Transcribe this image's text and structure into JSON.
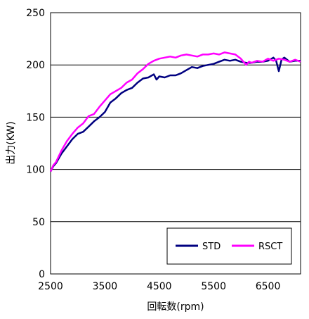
{
  "chart_data": {
    "type": "line",
    "title": "",
    "xlabel": "回転数(rpm)",
    "ylabel": "出力(KW)",
    "xlim": [
      2500,
      7100
    ],
    "ylim": [
      0,
      250
    ],
    "x_ticks": [
      "2500",
      "3500",
      "4500",
      "5500",
      "6500"
    ],
    "y_ticks": [
      "0",
      "50",
      "100",
      "150",
      "200",
      "250"
    ],
    "grid": "horizontal",
    "legend_position": "bottom-right",
    "series": [
      {
        "name": "STD",
        "color": "#000080",
        "points": [
          [
            2500,
            98
          ],
          [
            2550,
            103
          ],
          [
            2600,
            106
          ],
          [
            2700,
            115
          ],
          [
            2800,
            122
          ],
          [
            2900,
            129
          ],
          [
            3000,
            134
          ],
          [
            3100,
            136
          ],
          [
            3200,
            141
          ],
          [
            3300,
            146
          ],
          [
            3400,
            150
          ],
          [
            3500,
            155
          ],
          [
            3600,
            164
          ],
          [
            3700,
            168
          ],
          [
            3800,
            173
          ],
          [
            3900,
            176
          ],
          [
            4000,
            178
          ],
          [
            4100,
            183
          ],
          [
            4200,
            187
          ],
          [
            4300,
            188
          ],
          [
            4400,
            191
          ],
          [
            4450,
            186
          ],
          [
            4500,
            189
          ],
          [
            4600,
            188
          ],
          [
            4700,
            190
          ],
          [
            4800,
            190
          ],
          [
            4900,
            192
          ],
          [
            5000,
            195
          ],
          [
            5100,
            198
          ],
          [
            5200,
            197
          ],
          [
            5300,
            199
          ],
          [
            5400,
            200
          ],
          [
            5500,
            201
          ],
          [
            5600,
            203
          ],
          [
            5700,
            205
          ],
          [
            5800,
            204
          ],
          [
            5900,
            205
          ],
          [
            6000,
            203
          ],
          [
            6100,
            202
          ],
          [
            6200,
            202
          ],
          [
            6300,
            203
          ],
          [
            6400,
            203
          ],
          [
            6500,
            204
          ],
          [
            6600,
            207
          ],
          [
            6650,
            204
          ],
          [
            6700,
            194
          ],
          [
            6750,
            205
          ],
          [
            6800,
            207
          ],
          [
            6900,
            203
          ],
          [
            7000,
            204
          ],
          [
            7100,
            204
          ]
        ]
      },
      {
        "name": "RSCT",
        "color": "#ff00ff",
        "points": [
          [
            2500,
            98
          ],
          [
            2550,
            104
          ],
          [
            2600,
            107
          ],
          [
            2700,
            118
          ],
          [
            2800,
            127
          ],
          [
            2900,
            134
          ],
          [
            3000,
            140
          ],
          [
            3100,
            144
          ],
          [
            3200,
            151
          ],
          [
            3300,
            153
          ],
          [
            3400,
            160
          ],
          [
            3500,
            166
          ],
          [
            3600,
            172
          ],
          [
            3700,
            175
          ],
          [
            3800,
            178
          ],
          [
            3900,
            183
          ],
          [
            4000,
            186
          ],
          [
            4100,
            192
          ],
          [
            4200,
            196
          ],
          [
            4300,
            201
          ],
          [
            4400,
            204
          ],
          [
            4500,
            206
          ],
          [
            4600,
            207
          ],
          [
            4700,
            208
          ],
          [
            4800,
            207
          ],
          [
            4900,
            209
          ],
          [
            5000,
            210
          ],
          [
            5100,
            209
          ],
          [
            5200,
            208
          ],
          [
            5300,
            210
          ],
          [
            5400,
            210
          ],
          [
            5500,
            211
          ],
          [
            5600,
            210
          ],
          [
            5700,
            212
          ],
          [
            5800,
            211
          ],
          [
            5900,
            210
          ],
          [
            6000,
            206
          ],
          [
            6100,
            200
          ],
          [
            6150,
            203
          ],
          [
            6200,
            202
          ],
          [
            6300,
            204
          ],
          [
            6400,
            203
          ],
          [
            6500,
            206
          ],
          [
            6600,
            204
          ],
          [
            6700,
            206
          ],
          [
            6800,
            205
          ],
          [
            6900,
            203
          ],
          [
            7000,
            205
          ],
          [
            7100,
            203
          ]
        ]
      }
    ]
  }
}
